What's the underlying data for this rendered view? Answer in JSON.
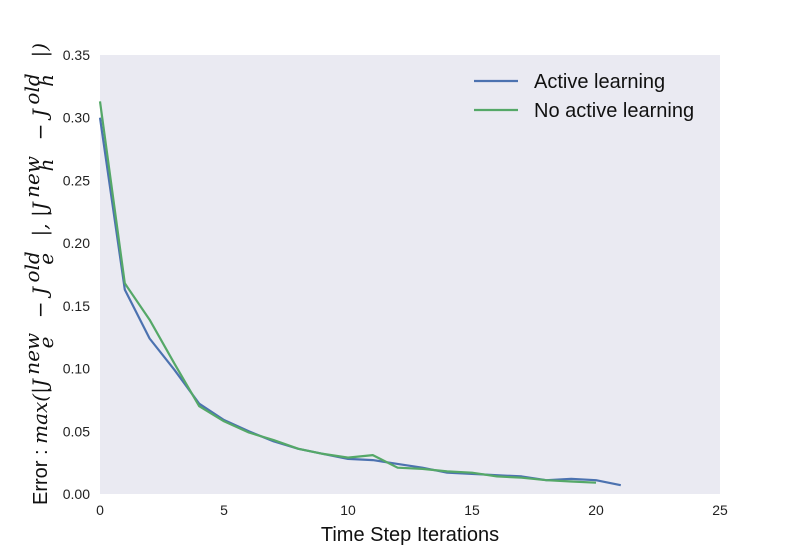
{
  "chart_data": {
    "type": "line",
    "title": "",
    "xlabel": "Time Step Iterations",
    "ylabel": "Error : max(|J_e^new − J_e^old|, |J_h^new − J_h^old|)",
    "ylabel_parts": {
      "prefix": "Error : ",
      "math_a": "max(|J",
      "sub_e": "e",
      "sup_new": "new",
      "minus": " − J",
      "sup_old": "old",
      "math_b": "|, |J",
      "sub_h": "h",
      "math_end": "|)"
    },
    "xlim": [
      0,
      25
    ],
    "ylim": [
      0,
      0.35
    ],
    "xticks": [
      0,
      5,
      10,
      15,
      20,
      25
    ],
    "xtick_labels": [
      "0",
      "5",
      "10",
      "15",
      "20",
      "25"
    ],
    "yticks": [
      0,
      0.05,
      0.1,
      0.15,
      0.2,
      0.25,
      0.3,
      0.35
    ],
    "ytick_labels": [
      "0.00",
      "0.05",
      "0.10",
      "0.15",
      "0.20",
      "0.25",
      "0.30",
      "0.35"
    ],
    "grid": false,
    "background": "#eaeaf2",
    "legend": {
      "position": "top-right"
    },
    "series": [
      {
        "name": "Active learning",
        "color": "#4c72b0",
        "x": [
          0,
          1,
          2,
          3,
          4,
          5,
          6,
          7,
          8,
          9,
          10,
          11,
          12,
          13,
          14,
          15,
          16,
          17,
          18,
          19,
          20,
          21
        ],
        "values": [
          0.3,
          0.163,
          0.124,
          0.099,
          0.072,
          0.059,
          0.05,
          0.042,
          0.036,
          0.032,
          0.028,
          0.027,
          0.024,
          0.021,
          0.017,
          0.016,
          0.015,
          0.014,
          0.011,
          0.012,
          0.011,
          0.007
        ]
      },
      {
        "name": "No active learning",
        "color": "#55a868",
        "x": [
          0,
          1,
          2,
          3,
          4,
          5,
          6,
          7,
          8,
          9,
          10,
          11,
          12,
          13,
          14,
          15,
          16,
          17,
          18,
          19,
          20
        ],
        "values": [
          0.313,
          0.168,
          0.139,
          0.104,
          0.07,
          0.058,
          0.049,
          0.043,
          0.036,
          0.032,
          0.029,
          0.031,
          0.021,
          0.02,
          0.018,
          0.017,
          0.014,
          0.013,
          0.011,
          0.01,
          0.009
        ]
      }
    ]
  }
}
